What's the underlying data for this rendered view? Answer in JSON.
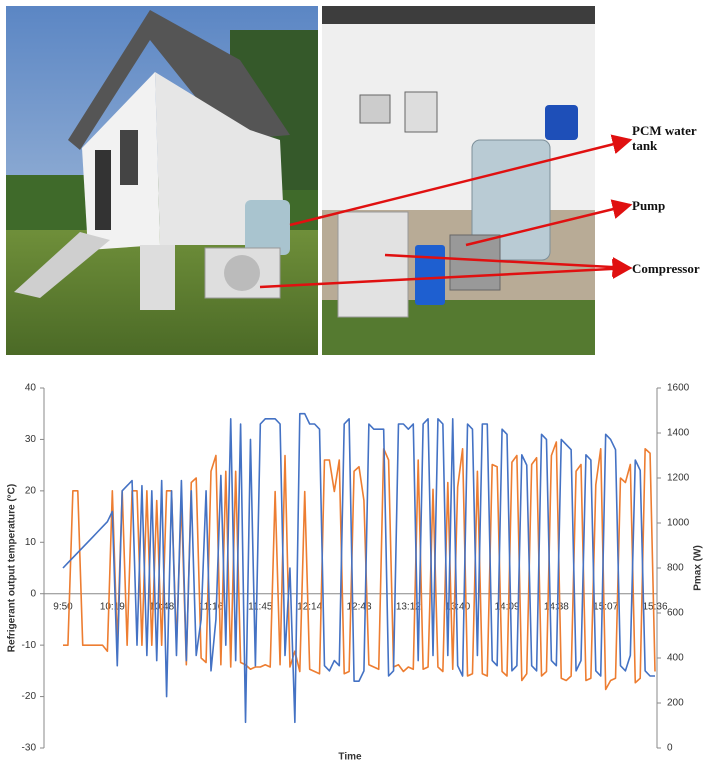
{
  "figure": {
    "labels": [
      "PCM water tank",
      "Pump",
      "Compressor"
    ]
  },
  "chart_data": {
    "type": "line",
    "x_label": "Time",
    "y_label": "Refrigerant output temperature (°C)",
    "y2_label": "Pmax (W)",
    "categories": [
      "9:50",
      null,
      null,
      null,
      null,
      null,
      null,
      null,
      null,
      null,
      "10:19",
      null,
      null,
      null,
      null,
      null,
      null,
      null,
      null,
      null,
      "10:48",
      null,
      null,
      null,
      null,
      null,
      null,
      null,
      null,
      null,
      "11:16",
      null,
      null,
      null,
      null,
      null,
      null,
      null,
      null,
      null,
      "11:45",
      null,
      null,
      null,
      null,
      null,
      null,
      null,
      null,
      null,
      "12:14",
      null,
      null,
      null,
      null,
      null,
      null,
      null,
      null,
      null,
      "12:43",
      null,
      null,
      null,
      null,
      null,
      null,
      null,
      null,
      null,
      "13:12",
      null,
      null,
      null,
      null,
      null,
      null,
      null,
      null,
      null,
      "13:40",
      null,
      null,
      null,
      null,
      null,
      null,
      null,
      null,
      null,
      "14:09",
      null,
      null,
      null,
      null,
      null,
      null,
      null,
      null,
      null,
      "14:38",
      null,
      null,
      null,
      null,
      null,
      null,
      null,
      null,
      null,
      "15:07",
      null,
      null,
      null,
      null,
      null,
      null,
      null,
      null,
      null,
      "15:36"
    ],
    "series": [
      {
        "color": "#4472c4",
        "values": [
          5,
          6,
          7,
          8,
          9,
          10,
          11,
          12,
          13,
          14,
          16,
          -14,
          20,
          21,
          22,
          -10,
          21,
          -12,
          20,
          -13,
          22,
          -20,
          20,
          -12,
          22,
          -13,
          20,
          -12,
          -5,
          20,
          -15,
          -5,
          23,
          -10,
          34,
          -13,
          33,
          -25,
          30,
          -14,
          33,
          34,
          34,
          34,
          33,
          -12,
          5,
          -25,
          35,
          35,
          33,
          33,
          32,
          -14,
          -15,
          -13,
          -14,
          33,
          34,
          -17,
          -17,
          -15,
          33,
          32,
          32,
          32,
          -16,
          -15,
          33,
          33,
          32,
          33,
          -13,
          33,
          34,
          -12,
          34,
          33,
          -12,
          34,
          -14,
          -16,
          33,
          32,
          -12,
          33,
          33,
          -13,
          -14,
          32,
          31,
          -15,
          -14,
          27,
          25,
          -14,
          -15,
          31,
          30,
          -13,
          -14,
          30,
          29,
          28,
          -15,
          -13,
          27,
          26,
          -15,
          -16,
          31,
          30,
          28,
          -14,
          -15,
          -12,
          26,
          24,
          -15,
          -16,
          -16
        ]
      },
      {
        "color": "#ed7d31",
        "axis": "y2",
        "values": [
          457,
          457,
          1143,
          1143,
          457,
          457,
          457,
          457,
          457,
          430,
          1143,
          457,
          1143,
          457,
          1143,
          1143,
          457,
          1143,
          457,
          1100,
          457,
          1143,
          1143,
          457,
          1100,
          370,
          1180,
          1200,
          400,
          380,
          1230,
          1300,
          370,
          1230,
          360,
          1230,
          380,
          370,
          350,
          360,
          360,
          370,
          360,
          1140,
          370,
          1300,
          360,
          430,
          340,
          1140,
          350,
          340,
          330,
          1280,
          1280,
          1140,
          1280,
          330,
          340,
          1230,
          1250,
          1100,
          370,
          360,
          350,
          1330,
          1280,
          360,
          370,
          340,
          360,
          350,
          1280,
          350,
          360,
          1150,
          360,
          340,
          1180,
          350,
          1160,
          1330,
          320,
          330,
          1230,
          330,
          320,
          1260,
          1250,
          340,
          320,
          1270,
          1300,
          300,
          330,
          1260,
          1290,
          320,
          340,
          1300,
          1360,
          310,
          300,
          320,
          1230,
          1260,
          300,
          310,
          1170,
          1330,
          260,
          300,
          310,
          1200,
          1180,
          1260,
          290,
          310,
          1330,
          1310,
          340
        ]
      }
    ],
    "ylim": [
      -30,
      40
    ],
    "yticks": [
      -30,
      -20,
      -10,
      0,
      10,
      20,
      30,
      40
    ],
    "y2lim": [
      0,
      1600
    ],
    "y2ticks": [
      0,
      200,
      400,
      600,
      800,
      1000,
      1200,
      1400,
      1600
    ]
  }
}
